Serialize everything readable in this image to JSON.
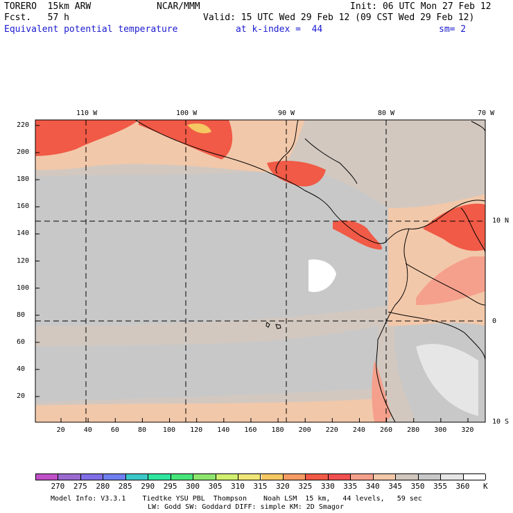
{
  "header": {
    "model": "TORERO  15km ARW",
    "forecast": "Fcst.   57 h",
    "center": "NCAR/MMM",
    "init": "Init: 06 UTC Mon 27 Feb 12",
    "valid": "Valid: 15 UTC Wed 29 Feb 12 (09 CST Wed 29 Feb 12)",
    "field": "Equivalent potential temperature",
    "level": "at k-index =  44",
    "smoothing": "sm= 2"
  },
  "map": {
    "top_lon_labels": [
      "110 W",
      "100 W",
      "90 W",
      "80 W",
      "70 W"
    ],
    "right_lat_labels": [
      "10 N",
      "0",
      "10 S"
    ],
    "y_ticks": [
      "220",
      "200",
      "180",
      "160",
      "140",
      "120",
      "100",
      "80",
      "60",
      "40",
      "20"
    ],
    "x_ticks": [
      "20",
      "40",
      "60",
      "80",
      "100",
      "120",
      "140",
      "160",
      "180",
      "200",
      "220",
      "240",
      "260",
      "280",
      "300",
      "320"
    ]
  },
  "legend": {
    "values": [
      "270",
      "275",
      "280",
      "285",
      "290",
      "295",
      "300",
      "305",
      "310",
      "315",
      "320",
      "325",
      "330",
      "335",
      "340",
      "345",
      "350",
      "355",
      "360"
    ],
    "unit": "K",
    "colors": [
      "#c050c8",
      "#9a6ad0",
      "#7f6ee6",
      "#6f7ff0",
      "#3cc8c8",
      "#2ee6a0",
      "#46e67a",
      "#8ee66e",
      "#d2f070",
      "#f0e678",
      "#f5c864",
      "#f59b64",
      "#f05a46",
      "#f05050",
      "#f5a08c",
      "#f2c8aa",
      "#d2c8c0",
      "#c8c8c8",
      "#e6e6e6",
      "#ffffff"
    ]
  },
  "footer": {
    "line1": "Model Info: V3.3.1    Tiedtke YSU PBL  Thompson    Noah LSM  15 km,   44 levels,   59 sec",
    "line2": "LW: Godd SW: Goddard DIFF: simple KM: 2D Smagor"
  }
}
